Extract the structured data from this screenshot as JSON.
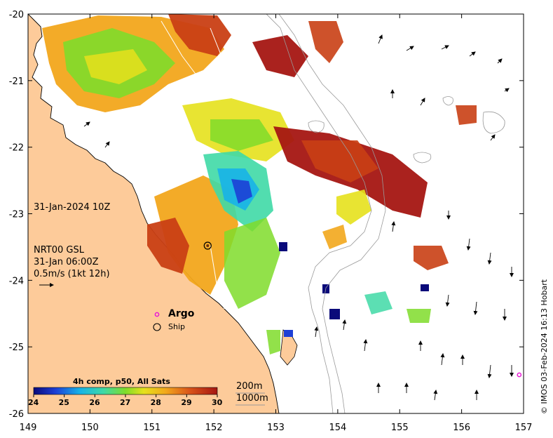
{
  "map": {
    "lon_ticks": [
      "149",
      "150",
      "151",
      "152",
      "153",
      "154",
      "155",
      "156",
      "157"
    ],
    "lat_ticks": [
      "-20",
      "-21",
      "-22",
      "-23",
      "-24",
      "-25",
      "-26"
    ],
    "lon_range": [
      149,
      157
    ],
    "lat_range": [
      -26,
      -20
    ]
  },
  "annotations": {
    "datetime": "31-Jan-2024 10Z",
    "current_source": "NRT00 GSL",
    "current_time": "31-Jan 06:00Z",
    "scale_text": "0.5m/s (1kt 12h)"
  },
  "legend": {
    "argo_label": "Argo",
    "ship_label": "Ship",
    "argo_color": "#e81ad6"
  },
  "colorbar": {
    "title": "4h comp, p50, All Sats",
    "ticks": [
      "24",
      "25",
      "26",
      "27",
      "28",
      "29",
      "30"
    ],
    "range": [
      24,
      30
    ]
  },
  "contours": {
    "label_200": "200m",
    "label_1000": "1000m"
  },
  "credit": "© IMOS 03-Feb-2024 16:13 Hobart",
  "markers": {
    "argo": {
      "lon": 156.93,
      "lat": -25.42
    },
    "ship": {
      "lon": 151.9,
      "lat": -23.48
    }
  },
  "colors": {
    "land": "#fdcb9a",
    "coast": "#000000",
    "bathymetry": "#9a9a9a"
  }
}
